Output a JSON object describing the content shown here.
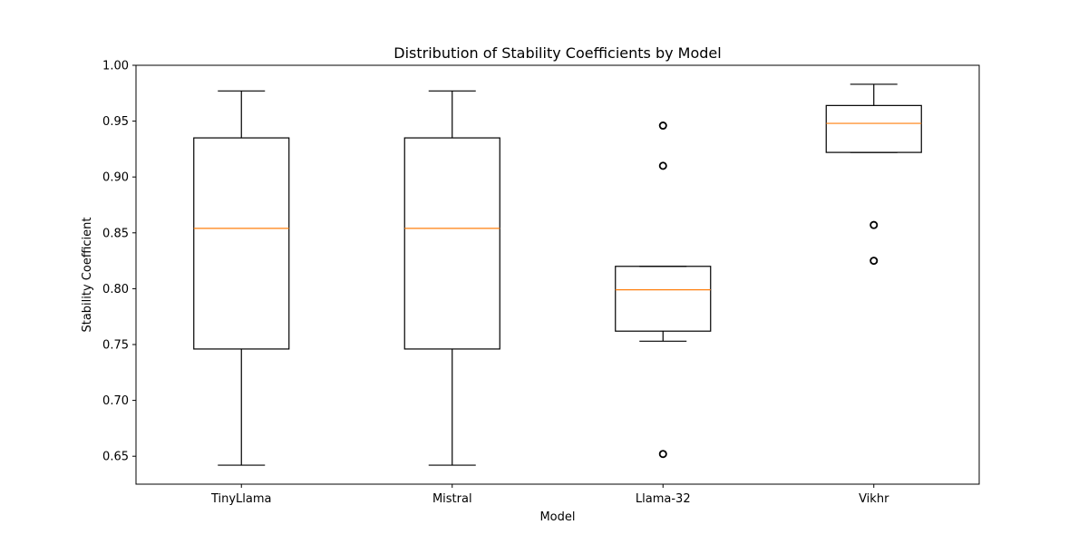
{
  "chart_data": {
    "type": "box",
    "title": "Distribution of Stability Coefficients by Model",
    "xlabel": "Model",
    "ylabel": "Stability Coefficient",
    "ylim": [
      0.625,
      1.0
    ],
    "yticks": [
      "0.65",
      "0.70",
      "0.75",
      "0.80",
      "0.85",
      "0.90",
      "0.95",
      "1.00"
    ],
    "grid": false,
    "colors": {
      "box": "#000000",
      "median": "#ff7f0e",
      "background": "#ffffff"
    },
    "categories": [
      "TinyLlama",
      "Mistral",
      "Llama-32",
      "Vikhr"
    ],
    "boxes": [
      {
        "category": "TinyLlama",
        "whisker_low": 0.642,
        "q1": 0.746,
        "median": 0.854,
        "q3": 0.935,
        "whisker_high": 0.977,
        "outliers": []
      },
      {
        "category": "Mistral",
        "whisker_low": 0.642,
        "q1": 0.746,
        "median": 0.854,
        "q3": 0.935,
        "whisker_high": 0.977,
        "outliers": []
      },
      {
        "category": "Llama-32",
        "whisker_low": 0.753,
        "q1": 0.762,
        "median": 0.799,
        "q3": 0.82,
        "whisker_high": 0.82,
        "outliers": [
          0.652,
          0.91,
          0.946
        ]
      },
      {
        "category": "Vikhr",
        "whisker_low": 0.922,
        "q1": 0.922,
        "median": 0.948,
        "q3": 0.964,
        "whisker_high": 0.983,
        "outliers": [
          0.825,
          0.857
        ]
      }
    ]
  }
}
